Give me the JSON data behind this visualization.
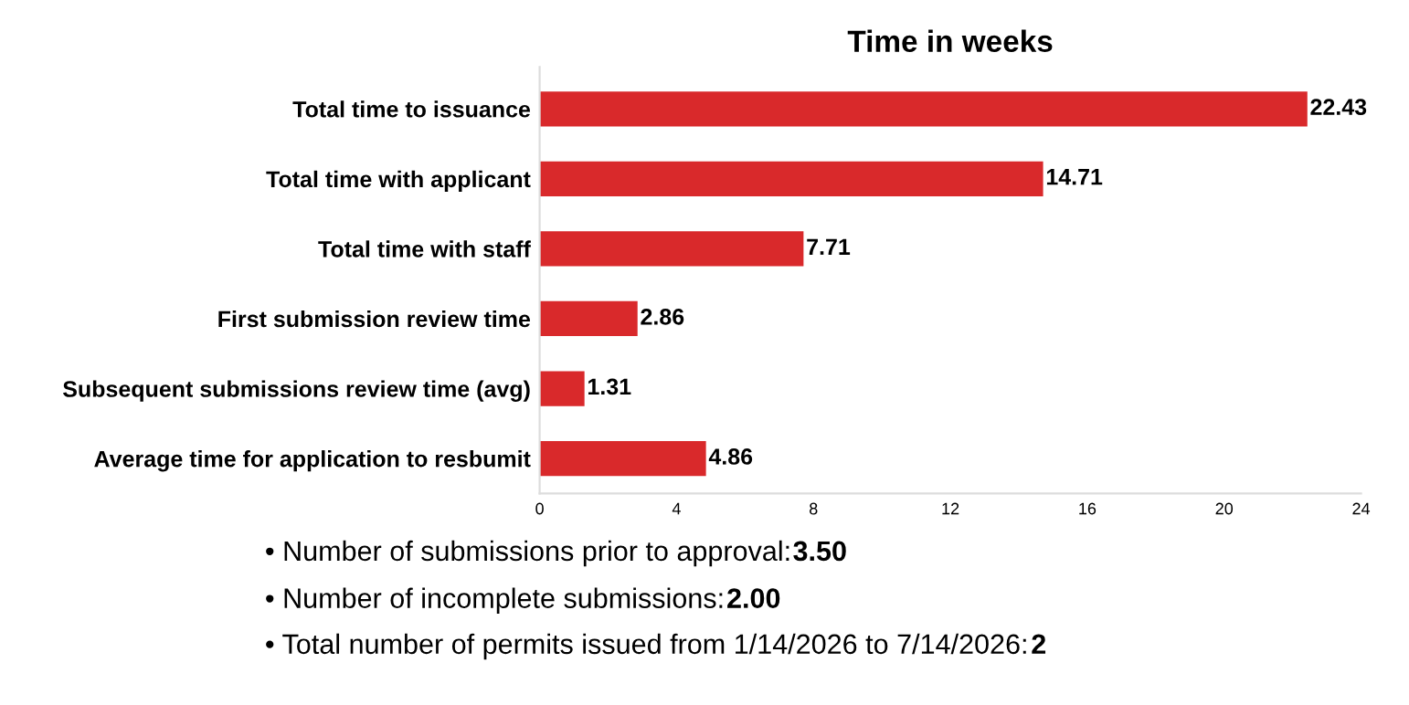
{
  "chart_data": {
    "type": "bar",
    "orientation": "horizontal",
    "title": "Time in weeks",
    "categories": [
      "Total time to issuance",
      "Total time with applicant",
      "Total time with staff",
      "First submission review time",
      "Subsequent submissions review time (avg)",
      "Average time for application to resbumit"
    ],
    "values": [
      22.43,
      14.71,
      7.71,
      2.86,
      1.31,
      4.86
    ],
    "color": "#d9292b",
    "xlim": [
      0,
      24
    ],
    "xticks": [
      0,
      4,
      8,
      12,
      16,
      20,
      24
    ],
    "grid": false,
    "data_labels": true,
    "annotations": [
      "• Number of submissions prior to approval: 3.50",
      "• Number of incomplete submissions:  2.00",
      "• Total number of permits issued from 1/14/2026 to 7/14/2026: 2"
    ]
  }
}
